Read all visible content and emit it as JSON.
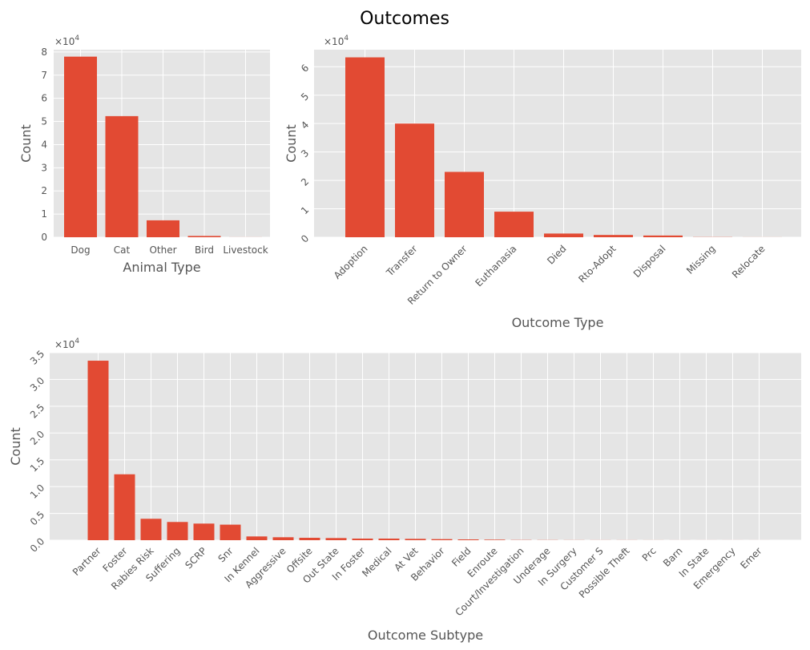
{
  "chart_data": {
    "type": "bar",
    "title": "Outcomes",
    "panels": [
      {
        "id": "animal",
        "xlabel": "Animal Type",
        "ylabel": "Count",
        "multiplier_text": "×10",
        "multiplier_exp": "4",
        "scale": 10000,
        "ylim": [
          0,
          8.1
        ],
        "yticks": [
          0,
          1,
          2,
          3,
          4,
          5,
          6,
          7,
          8
        ],
        "ytick_labels": [
          "0",
          "1",
          "2",
          "3",
          "4",
          "5",
          "6",
          "7",
          "8"
        ],
        "rotate_xticks": false,
        "rotate_yticks": false,
        "categories": [
          "Dog",
          "Cat",
          "Other",
          "Bird",
          "Livestock"
        ],
        "values": [
          78000,
          52300,
          7300,
          550,
          25
        ]
      },
      {
        "id": "outcome",
        "xlabel": "Outcome Type",
        "ylabel": "Count",
        "multiplier_text": "×10",
        "multiplier_exp": "4",
        "scale": 10000,
        "ylim": [
          0,
          6.6
        ],
        "yticks": [
          0,
          1,
          2,
          3,
          4,
          5,
          6
        ],
        "ytick_labels": [
          "0",
          "1",
          "2",
          "3",
          "4",
          "5",
          "6"
        ],
        "rotate_xticks": true,
        "rotate_yticks": true,
        "categories": [
          "Adoption",
          "Transfer",
          "Return to Owner",
          "Euthanasia",
          "Died",
          "Rto-Adopt",
          "Disposal",
          "Missing",
          "Relocate"
        ],
        "values": [
          63300,
          40000,
          23000,
          9000,
          1300,
          800,
          600,
          60,
          20
        ]
      },
      {
        "id": "subtype",
        "xlabel": "Outcome Subtype",
        "ylabel": "Count",
        "multiplier_text": "×10",
        "multiplier_exp": "4",
        "scale": 10000,
        "ylim": [
          0,
          3.5
        ],
        "yticks": [
          0,
          0.5,
          1.0,
          1.5,
          2.0,
          2.5,
          3.0,
          3.5
        ],
        "ytick_labels": [
          "0.0",
          "0.5",
          "1.0",
          "1.5",
          "2.0",
          "2.5",
          "3.0",
          "3.5"
        ],
        "rotate_xticks": true,
        "rotate_yticks": true,
        "categories": [
          "Partner",
          "Foster",
          "Rabies Risk",
          "Suffering",
          "SCRP",
          "Snr",
          "In Kennel",
          "Aggressive",
          "Offsite",
          "Out State",
          "In Foster",
          "Medical",
          "At Vet",
          "Behavior",
          "Field",
          "Enroute",
          "Court/Investigation",
          "Underage",
          "In Surgery",
          "Customer S",
          "Possible Theft",
          "Prc",
          "Barn",
          "In State",
          "Emergency",
          "Emer"
        ],
        "values": [
          33500,
          12300,
          4000,
          3400,
          3100,
          2900,
          700,
          550,
          450,
          400,
          300,
          300,
          250,
          200,
          150,
          100,
          40,
          30,
          20,
          15,
          15,
          10,
          8,
          5,
          5,
          3
        ]
      }
    ]
  }
}
